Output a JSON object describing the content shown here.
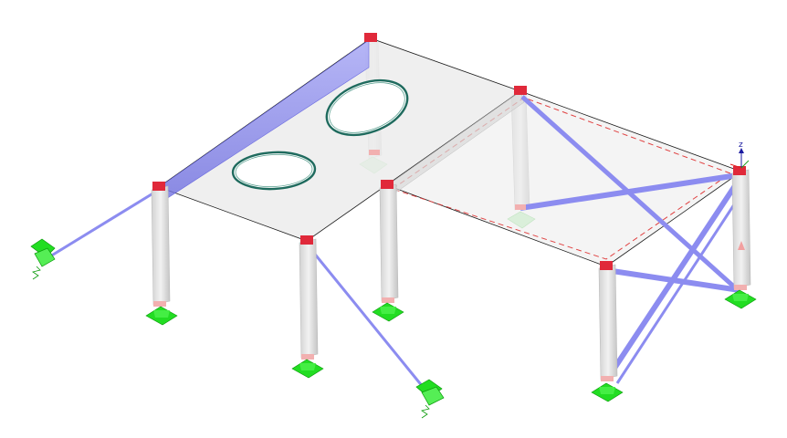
{
  "view": {
    "background": "#ffffff",
    "axis_label": "z"
  },
  "colors": {
    "slab_fill": "#e9e9e9",
    "slab_edge": "#1a1a1a",
    "column_light": "#ececec",
    "column_dark": "#c8c8c8",
    "brace": "#8c8cf0",
    "beam_highlight": "#8080ee",
    "node": "#e0293a",
    "support": "#22dd22",
    "support_dark": "#0a9a0a",
    "opening_ring": "#1f6b5e",
    "dashed_outline": "#e04040",
    "axis": "#1a1aa0"
  },
  "elements": {
    "slabs": [
      "slab-left",
      "slab-right"
    ],
    "openings": [
      "opening-front",
      "opening-back"
    ],
    "columns": [
      "column-1",
      "column-2",
      "column-3",
      "column-4",
      "column-5",
      "column-6",
      "column-7"
    ],
    "braces": [
      "brace-1",
      "brace-2",
      "brace-3",
      "brace-4",
      "brace-5",
      "brace-6"
    ],
    "supports": [
      "support-1",
      "support-2",
      "support-3",
      "support-4",
      "support-5",
      "support-6",
      "support-7",
      "support-8"
    ],
    "spring_supports": [
      "spring-support-left",
      "spring-support-bottom"
    ]
  }
}
